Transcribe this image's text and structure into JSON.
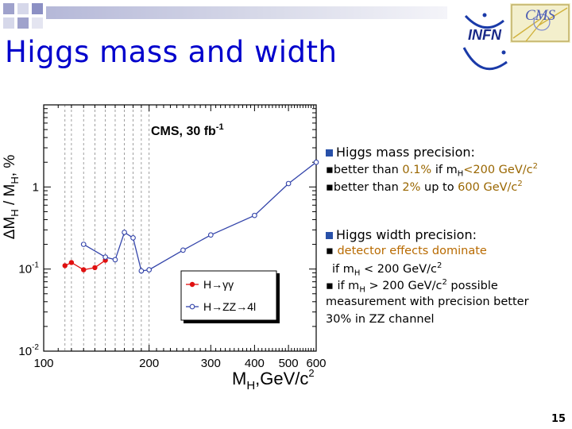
{
  "slide": {
    "title": "Higgs mass and width",
    "page_number": "15",
    "logos": {
      "infn": "INFN",
      "cms": "CMS"
    },
    "mass_block": {
      "header": "Higgs mass precision:",
      "b1_pre": "better than ",
      "b1_hl": "0.1%",
      "b1_mid": " if m",
      "b1_sub": "H",
      "b1_tail": "<200 GeV/c",
      "b1_sup": "2",
      "b2_pre": "better than ",
      "b2_hl": "2%",
      "b2_mid": " up to ",
      "b2_tail": "600 GeV/c",
      "b2_sup": "2"
    },
    "width_block": {
      "header": "Higgs width precision:",
      "b1_hl": "detector effects dominate",
      "b1b_pre": "if m",
      "b1b_sub": "H",
      "b1b_mid": " < 200 GeV/c",
      "b1b_sup": "2",
      "b2_pre": "if m",
      "b2_sub": "H",
      "b2_mid": " > 200 GeV/c",
      "b2_sup": "2",
      "b2_tail": " possible",
      "b3": "measurement with precision better",
      "b4": "30% in ZZ channel"
    }
  },
  "chart_data": {
    "type": "line",
    "annotation": "CMS, 30 fb",
    "annotation_sup": "-1",
    "ylabel": "ΔM",
    "ylabel_sub": "H",
    "ylabel_mid": " / M",
    "ylabel_sub2": "H",
    "ylabel_tail": ", %",
    "xlabel": "M",
    "xlabel_sub": "H",
    "xlabel_tail": ",GeV/c",
    "xlabel_sup": "2",
    "x_scale": "log",
    "y_scale": "log",
    "xlim": [
      100,
      600
    ],
    "ylim": [
      0.01,
      10
    ],
    "x_ticks": [
      100,
      200,
      300,
      400,
      500,
      600
    ],
    "y_ticks": [
      {
        "value": 1,
        "label": "1",
        "sup": ""
      },
      {
        "value": 0.1,
        "label": "10",
        "sup": "-1"
      },
      {
        "value": 0.01,
        "label": "10",
        "sup": "-2"
      }
    ],
    "vlines": [
      115,
      120,
      130,
      140,
      150,
      160,
      170,
      180,
      190,
      200
    ],
    "series": [
      {
        "name": "H→γγ",
        "color": "#e01010",
        "marker": "filled-circle",
        "x": [
          115,
          120,
          130,
          140,
          150
        ],
        "y": [
          0.11,
          0.12,
          0.098,
          0.104,
          0.128
        ]
      },
      {
        "name": "H→ZZ→4l",
        "color": "#3344aa",
        "marker": "open-circle",
        "x": [
          130,
          150,
          160,
          170,
          180,
          190,
          200,
          250,
          300,
          400,
          500,
          600
        ],
        "y": [
          0.2,
          0.14,
          0.13,
          0.28,
          0.24,
          0.095,
          0.098,
          0.17,
          0.26,
          0.45,
          1.1,
          2.0
        ]
      }
    ],
    "legend_position": "bottom-right"
  }
}
